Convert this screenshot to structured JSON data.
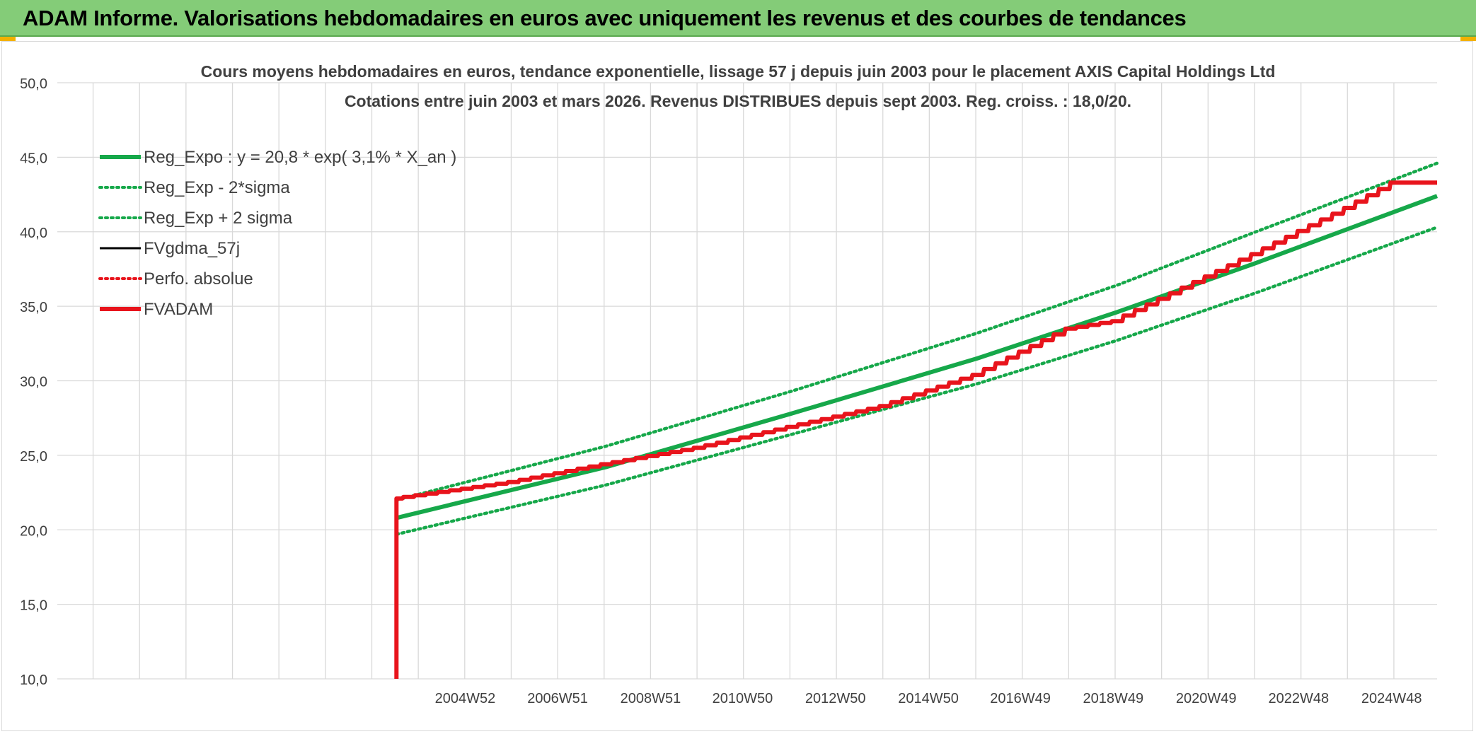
{
  "banner": {
    "title": "ADAM Informe. Valorisations hebdomadaires en euros avec uniquement les revenus et des courbes de tendances"
  },
  "colors": {
    "banner": "#84cc78",
    "reg_expo": "#16a84a",
    "fvadam": "#e8141c",
    "fvgdma": "#000000",
    "grid": "#d9d9d9"
  },
  "chart_data": {
    "type": "line",
    "title": "Cours moyens hebdomadaires en euros, tendance exponentielle, lissage 57 j depuis juin 2003 pour le placement AXIS Capital Holdings Ltd",
    "subtitle": "Cotations entre juin 2003 et mars 2026. Revenus DISTRIBUES depuis sept 2003. Reg. croiss. : 18,0/20.",
    "ylim": [
      10,
      50
    ],
    "yticks": [
      "10,0",
      "15,0",
      "20,0",
      "25,0",
      "30,0",
      "35,0",
      "40,0",
      "45,0",
      "50,0"
    ],
    "xlim": [
      1996.2,
      2025.9
    ],
    "xticks": [
      {
        "label": "2004W52",
        "x": 2004.98
      },
      {
        "label": "2006W51",
        "x": 2006.97
      },
      {
        "label": "2008W51",
        "x": 2008.97
      },
      {
        "label": "2010W50",
        "x": 2010.95
      },
      {
        "label": "2012W50",
        "x": 2012.95
      },
      {
        "label": "2014W50",
        "x": 2014.95
      },
      {
        "label": "2016W49",
        "x": 2016.93
      },
      {
        "label": "2018W49",
        "x": 2018.93
      },
      {
        "label": "2020W49",
        "x": 2020.93
      },
      {
        "label": "2022W48",
        "x": 2022.92
      },
      {
        "label": "2024W48",
        "x": 2024.92
      }
    ],
    "grid": true,
    "legend_position": "top-left",
    "series": [
      {
        "name": "Reg_Expo : y = 20,8 * exp( 3,1% *  X_an )",
        "style": "solid-thick",
        "color": "#16a84a",
        "x": [
          2003.5,
          2008,
          2012,
          2016,
          2019,
          2022,
          2025.9
        ],
        "y": [
          20.8,
          24.2,
          27.8,
          31.5,
          34.6,
          37.9,
          42.4
        ]
      },
      {
        "name": "Reg_Exp - 2*sigma",
        "style": "dotted",
        "color": "#16a84a",
        "x": [
          2003.5,
          2008,
          2012,
          2016,
          2019,
          2022,
          2025.9
        ],
        "y": [
          19.7,
          23.0,
          26.4,
          29.8,
          32.7,
          35.9,
          40.3
        ]
      },
      {
        "name": "Reg_Exp + 2 sigma",
        "style": "dotted",
        "color": "#16a84a",
        "x": [
          2003.5,
          2008,
          2012,
          2016,
          2019,
          2022,
          2025.9
        ],
        "y": [
          22.0,
          25.6,
          29.3,
          33.2,
          36.4,
          40.0,
          44.6
        ]
      },
      {
        "name": "FVgdma_57j",
        "style": "solid",
        "color": "#000000",
        "x": [],
        "y": []
      },
      {
        "name": "Perfo. absolue",
        "style": "dotted",
        "color": "#e8141c",
        "x": [],
        "y": []
      },
      {
        "name": "FVADAM",
        "style": "solid-thick",
        "color": "#e8141c",
        "x": [
          2003.5,
          2003.5,
          2003.5,
          2006,
          2008,
          2010,
          2012,
          2014,
          2016,
          2018,
          2019,
          2020,
          2022,
          2024,
          2025,
          2025.9
        ],
        "y": [
          10.0,
          22.1,
          22.1,
          23.2,
          24.4,
          25.5,
          26.9,
          28.3,
          30.4,
          33.5,
          34.0,
          35.5,
          38.5,
          41.6,
          43.3,
          43.3
        ]
      }
    ]
  }
}
